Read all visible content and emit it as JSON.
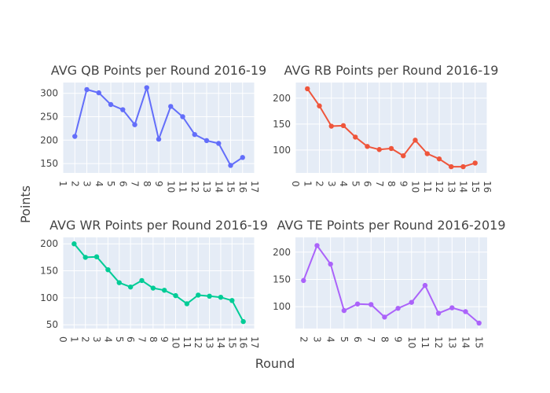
{
  "figure": {
    "xlabel": "Round",
    "ylabel": "Points"
  },
  "chart_data": [
    {
      "type": "line",
      "title": "AVG QB Points per Round 2016-19",
      "color": "#636efa",
      "x": [
        2,
        3,
        4,
        5,
        6,
        7,
        8,
        9,
        10,
        11,
        12,
        13,
        14,
        15,
        16
      ],
      "y": [
        208,
        308,
        301,
        276,
        265,
        233,
        312,
        202,
        272,
        250,
        212,
        199,
        193,
        146,
        163
      ],
      "xlim": [
        1,
        17
      ],
      "ylim": [
        130,
        323
      ],
      "xticks": [
        1,
        2,
        3,
        4,
        5,
        6,
        7,
        8,
        9,
        10,
        11,
        12,
        13,
        14,
        15,
        16,
        17
      ],
      "yticks": [
        150,
        200,
        250,
        300
      ]
    },
    {
      "type": "line",
      "title": "AVG RB Points per Round 2016-19",
      "color": "#ef553b",
      "x": [
        1,
        2,
        3,
        4,
        5,
        6,
        7,
        8,
        9,
        10,
        11,
        12,
        13,
        14,
        15
      ],
      "y": [
        218,
        185,
        146,
        147,
        125,
        107,
        101,
        103,
        89,
        119,
        93,
        83,
        68,
        68,
        75
      ],
      "xlim": [
        0,
        16
      ],
      "ylim": [
        56,
        230
      ],
      "xticks": [
        0,
        1,
        2,
        3,
        4,
        5,
        6,
        7,
        8,
        9,
        10,
        11,
        12,
        13,
        14,
        15,
        16
      ],
      "yticks": [
        100,
        150,
        200
      ]
    },
    {
      "type": "line",
      "title": "AVG WR Points per Round 2016-19",
      "color": "#00cc96",
      "x": [
        1,
        2,
        3,
        4,
        5,
        6,
        7,
        8,
        9,
        10,
        11,
        12,
        13,
        14,
        15,
        16
      ],
      "y": [
        200,
        175,
        176,
        152,
        128,
        120,
        132,
        118,
        114,
        104,
        89,
        105,
        103,
        101,
        95,
        56
      ],
      "xlim": [
        0,
        17
      ],
      "ylim": [
        43,
        212
      ],
      "xticks": [
        0,
        1,
        2,
        3,
        4,
        5,
        6,
        7,
        8,
        9,
        10,
        11,
        12,
        13,
        14,
        15,
        16,
        17
      ],
      "yticks": [
        50,
        100,
        150,
        200
      ]
    },
    {
      "type": "line",
      "title": "AVG TE Points per Round 2016-2019",
      "color": "#ab63fa",
      "x": [
        2,
        3,
        4,
        5,
        6,
        7,
        8,
        9,
        10,
        11,
        12,
        13,
        14,
        15
      ],
      "y": [
        148,
        212,
        178,
        93,
        105,
        104,
        81,
        97,
        108,
        139,
        88,
        98,
        91,
        70
      ],
      "xlim": [
        1.4,
        15.6
      ],
      "ylim": [
        60,
        227
      ],
      "xticks": [
        2,
        3,
        4,
        5,
        6,
        7,
        8,
        9,
        10,
        11,
        12,
        13,
        14,
        15
      ],
      "yticks": [
        100,
        150,
        200
      ]
    }
  ]
}
